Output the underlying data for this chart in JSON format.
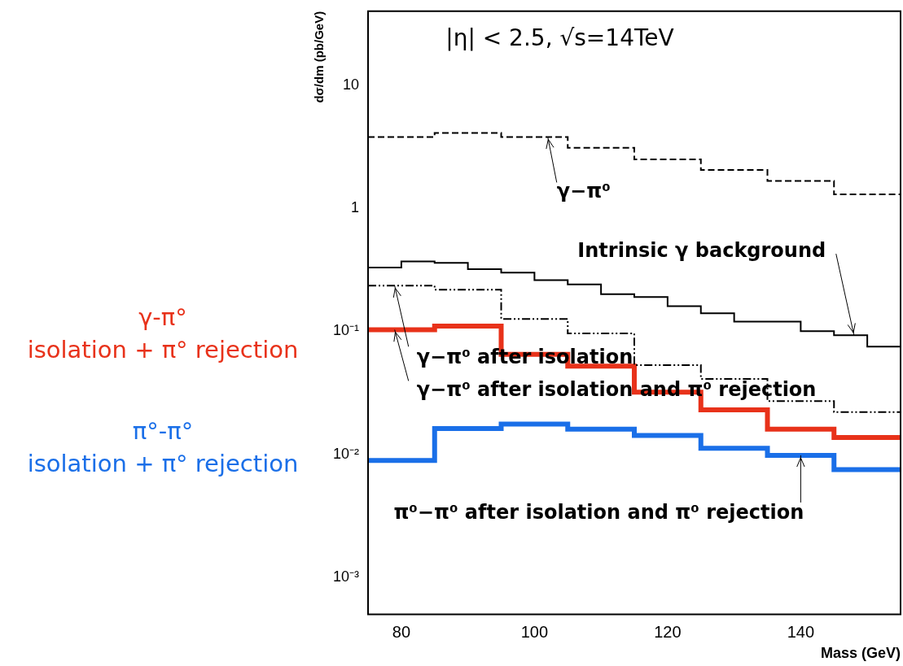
{
  "chart_data": {
    "type": "step",
    "xlabel": "Mass (GeV)",
    "ylabel": "dσ/dm (pb/GeV)",
    "log": "y",
    "grid": false,
    "legend": false,
    "marker": "none",
    "xlim": [
      75,
      155
    ],
    "xticks": [
      80,
      100,
      120,
      140
    ],
    "ylim": [
      0.0005,
      40
    ],
    "yticks": [
      {
        "value": 0.001,
        "label": "10⁻³"
      },
      {
        "value": 0.01,
        "label": "10⁻²"
      },
      {
        "value": 0.1,
        "label": "10⁻¹"
      },
      1,
      10
    ],
    "series": [
      {
        "color": "#000000",
        "line_style": "dashed",
        "x": [
          75,
          85,
          95,
          105,
          115,
          125,
          135,
          145,
          155
        ],
        "values": [
          3.8,
          4.1,
          3.8,
          3.1,
          2.5,
          2.05,
          1.67,
          1.3,
          1.3
        ]
      },
      {
        "color": "#000000",
        "line_style": "solid",
        "x": [
          75,
          80,
          85,
          90,
          95,
          100,
          105,
          110,
          115,
          120,
          125,
          130,
          135,
          140,
          145,
          150,
          155
        ],
        "values": [
          0.33,
          0.37,
          0.36,
          0.32,
          0.3,
          0.26,
          0.24,
          0.2,
          0.19,
          0.16,
          0.14,
          0.12,
          0.12,
          0.1,
          0.093,
          0.075,
          0.075
        ]
      },
      {
        "color": "#000000",
        "line_style": "dotted",
        "x": [
          75,
          85,
          95,
          105,
          115,
          125,
          135,
          145,
          155
        ],
        "values": [
          0.235,
          0.218,
          0.126,
          0.096,
          0.053,
          0.041,
          0.027,
          0.022,
          0.022
        ]
      },
      {
        "name": "γ-π° isolation + π° rejection",
        "color": "#e8321a",
        "line_style": "solid",
        "x": [
          75,
          85,
          95,
          105,
          115,
          125,
          135,
          145,
          155
        ],
        "values": [
          0.103,
          0.11,
          0.065,
          0.052,
          0.032,
          0.023,
          0.016,
          0.0137,
          0.0137
        ]
      },
      {
        "name": "π°-π° isolation + π° rejection",
        "color": "#1a6fe8",
        "line_style": "solid",
        "x": [
          75,
          85,
          95,
          105,
          115,
          125,
          135,
          145,
          155
        ],
        "values": [
          0.0089,
          0.0162,
          0.0176,
          0.016,
          0.0142,
          0.0112,
          0.0098,
          0.0075,
          0.0075
        ]
      }
    ],
    "annotations": [
      "|η| < 2.5, √s=14TeV",
      {
        "text": "γ−π⁰",
        "x": 102,
        "y": 3.8
      },
      {
        "text": "Intrinsic γ background",
        "x": 148,
        "y": 0.093
      },
      {
        "text": "γ−π⁰ after isolation",
        "x": 79,
        "y": 0.235
      },
      {
        "text": "γ−π⁰ after isolation and π⁰ rejection",
        "x": 79,
        "y": 0.103
      },
      {
        "text": "π⁰−π⁰ after isolation and π⁰ rejection",
        "x": 140,
        "y": 0.0098
      }
    ]
  }
}
